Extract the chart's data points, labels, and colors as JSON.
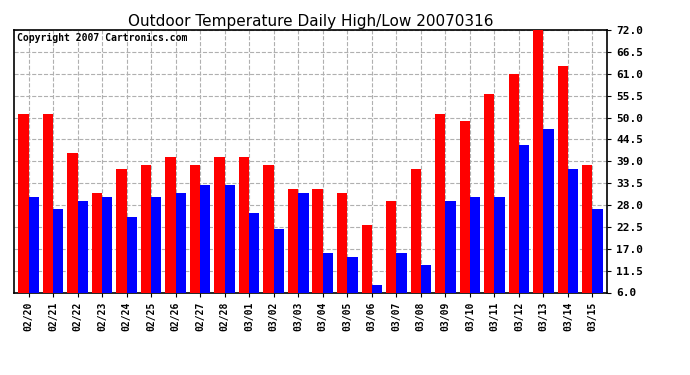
{
  "title": "Outdoor Temperature Daily High/Low 20070316",
  "copyright": "Copyright 2007 Cartronics.com",
  "dates": [
    "02/20",
    "02/21",
    "02/22",
    "02/23",
    "02/24",
    "02/25",
    "02/26",
    "02/27",
    "02/28",
    "03/01",
    "03/02",
    "03/03",
    "03/04",
    "03/05",
    "03/06",
    "03/07",
    "03/08",
    "03/09",
    "03/10",
    "03/11",
    "03/12",
    "03/13",
    "03/14",
    "03/15"
  ],
  "highs": [
    51,
    51,
    41,
    31,
    37,
    38,
    40,
    38,
    40,
    40,
    38,
    32,
    32,
    31,
    23,
    29,
    37,
    51,
    49,
    56,
    61,
    73,
    63,
    38
  ],
  "lows": [
    30,
    27,
    29,
    30,
    25,
    30,
    31,
    33,
    33,
    26,
    22,
    31,
    16,
    15,
    8,
    16,
    13,
    29,
    30,
    30,
    43,
    47,
    37,
    27
  ],
  "high_color": "#ff0000",
  "low_color": "#0000ff",
  "bg_color": "#ffffff",
  "plot_bg_color": "#ffffff",
  "grid_color": "#b0b0b0",
  "yticks": [
    6.0,
    11.5,
    17.0,
    22.5,
    28.0,
    33.5,
    39.0,
    44.5,
    50.0,
    55.5,
    61.0,
    66.5,
    72.0
  ],
  "ymin": 6.0,
  "ymax": 72.0,
  "bar_width": 0.42,
  "title_fontsize": 11,
  "copyright_fontsize": 7,
  "tick_fontsize": 7,
  "ytick_fontsize": 8
}
